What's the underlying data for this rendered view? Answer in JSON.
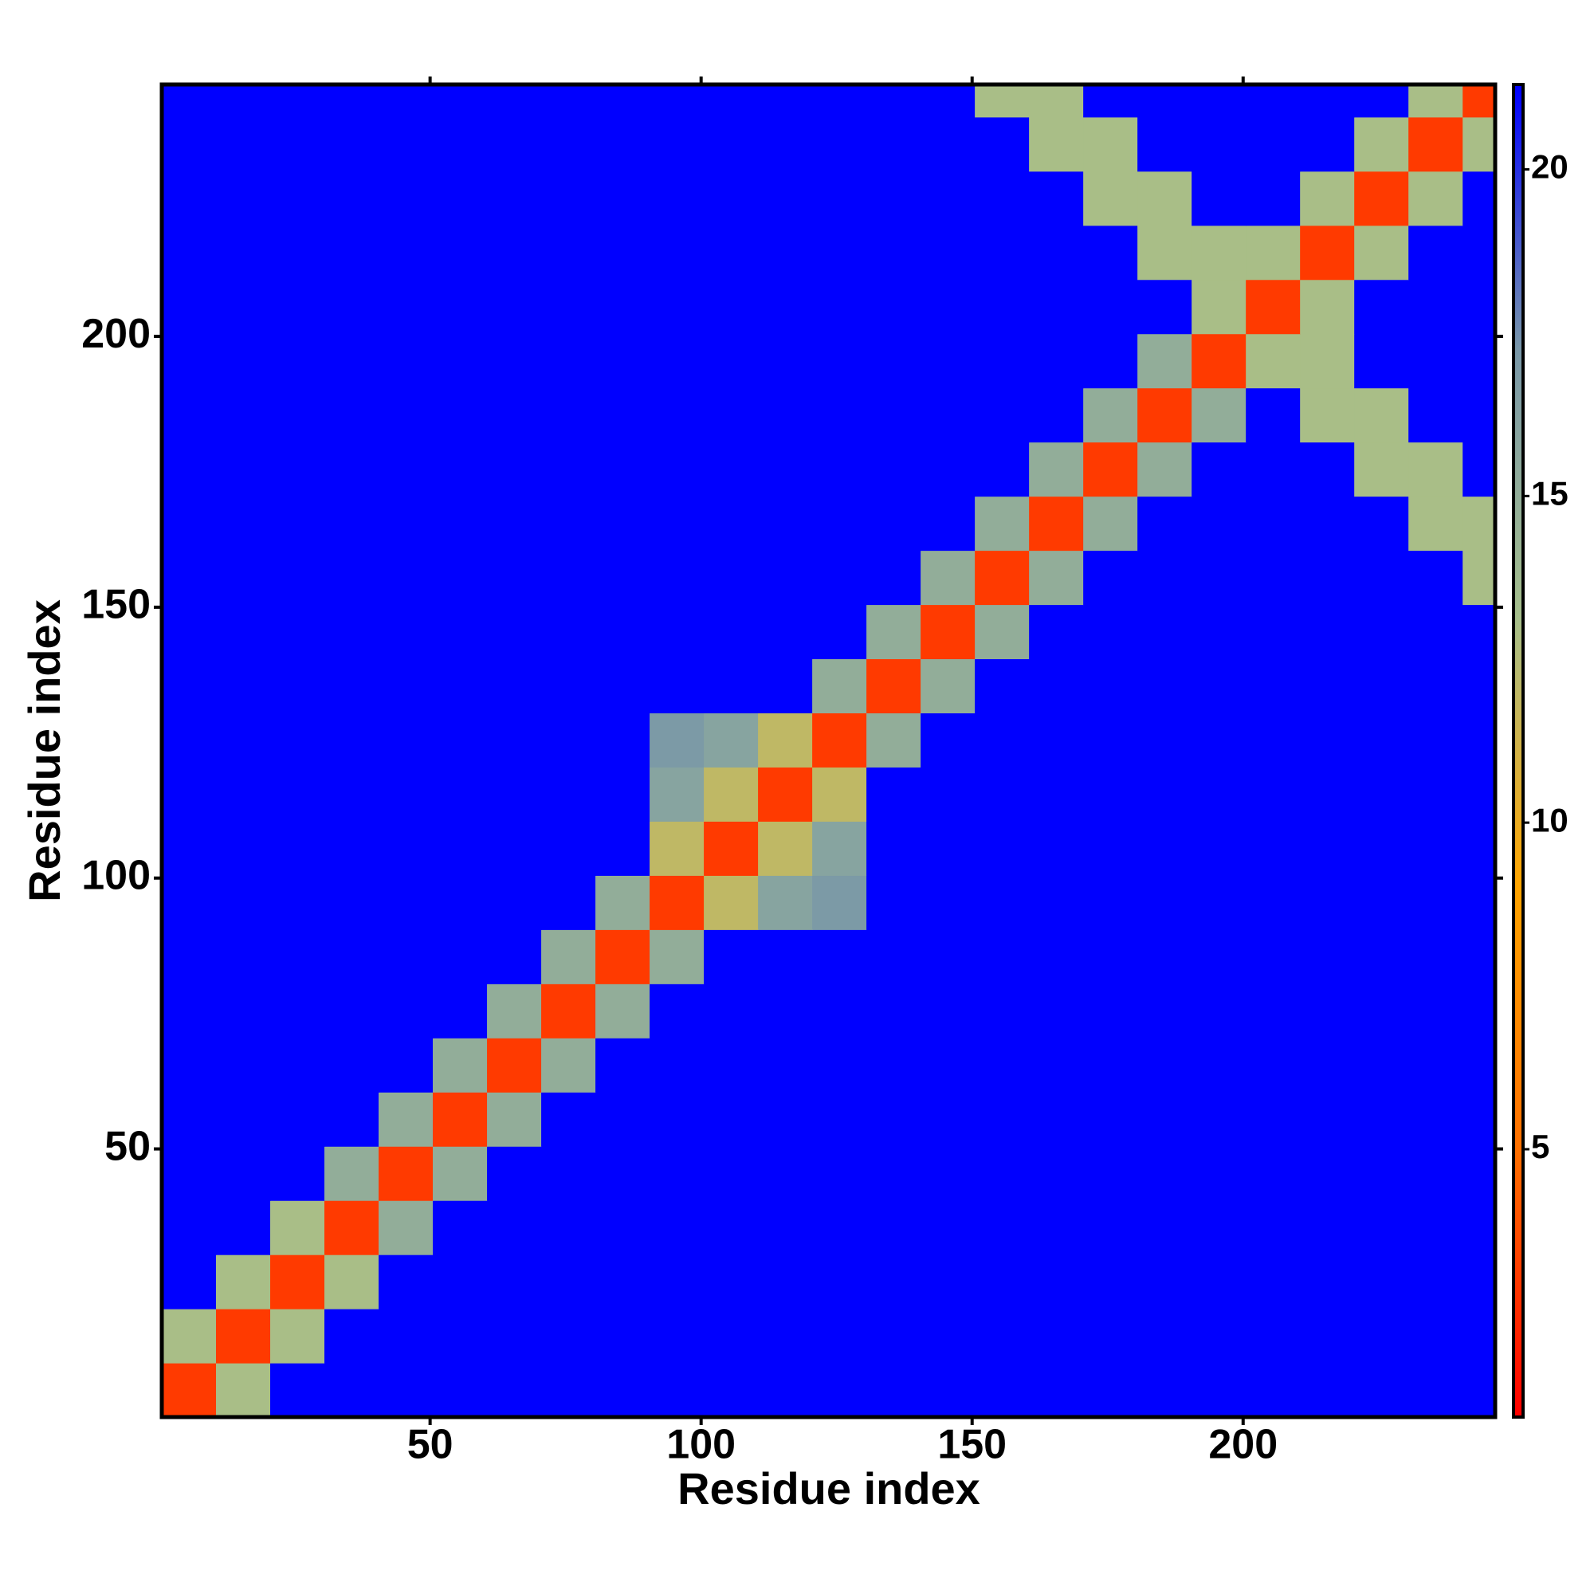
{
  "chart_data": {
    "type": "heatmap",
    "xlabel": "Residue index",
    "ylabel": "Residue index",
    "xbins": [
      0.5,
      10.5,
      20.5,
      30.5,
      40.5,
      50.5,
      60.5,
      70.5,
      80.5,
      90.5,
      100.5,
      110.5,
      120.5,
      130.5,
      140.5,
      150.5,
      160.5,
      170.5,
      180.5,
      190.5,
      200.5,
      210.5,
      220.5,
      230.5,
      240.5,
      246.5
    ],
    "ybins": [
      0.5,
      10.5,
      20.5,
      30.5,
      40.5,
      50.5,
      60.5,
      70.5,
      80.5,
      90.5,
      100.5,
      110.5,
      120.5,
      130.5,
      140.5,
      150.5,
      160.5,
      170.5,
      180.5,
      190.5,
      200.5,
      210.5,
      220.5,
      230.5,
      240.5,
      246.5
    ],
    "z": [
      [
        3,
        13,
        21.3,
        21.3,
        21.3,
        21.3,
        21.3,
        21.3,
        21.3,
        21.3,
        21.3,
        21.3,
        21.3,
        21.3,
        21.3,
        21.3,
        21.3,
        21.3,
        21.3,
        21.3,
        21.3,
        21.3,
        21.3,
        21.3,
        21.3
      ],
      [
        13,
        3,
        13,
        21.3,
        21.3,
        21.3,
        21.3,
        21.3,
        21.3,
        21.3,
        21.3,
        21.3,
        21.3,
        21.3,
        21.3,
        21.3,
        21.3,
        21.3,
        21.3,
        21.3,
        21.3,
        21.3,
        21.3,
        21.3,
        21.3
      ],
      [
        21.3,
        13,
        3,
        13,
        21.3,
        21.3,
        21.3,
        21.3,
        21.3,
        21.3,
        21.3,
        21.3,
        21.3,
        21.3,
        21.3,
        21.3,
        21.3,
        21.3,
        21.3,
        21.3,
        21.3,
        21.3,
        21.3,
        21.3,
        21.3
      ],
      [
        21.3,
        21.3,
        13,
        3,
        15,
        21.3,
        21.3,
        21.3,
        21.3,
        21.3,
        21.3,
        21.3,
        21.3,
        21.3,
        21.3,
        21.3,
        21.3,
        21.3,
        21.3,
        21.3,
        21.3,
        21.3,
        21.3,
        21.3,
        21.3
      ],
      [
        21.3,
        21.3,
        21.3,
        15,
        3,
        15,
        21.3,
        21.3,
        21.3,
        21.3,
        21.3,
        21.3,
        21.3,
        21.3,
        21.3,
        21.3,
        21.3,
        21.3,
        21.3,
        21.3,
        21.3,
        21.3,
        21.3,
        21.3,
        21.3
      ],
      [
        21.3,
        21.3,
        21.3,
        21.3,
        15,
        3,
        15,
        21.3,
        21.3,
        21.3,
        21.3,
        21.3,
        21.3,
        21.3,
        21.3,
        21.3,
        21.3,
        21.3,
        21.3,
        21.3,
        21.3,
        21.3,
        21.3,
        21.3,
        21.3
      ],
      [
        21.3,
        21.3,
        21.3,
        21.3,
        21.3,
        15,
        3,
        15,
        21.3,
        21.3,
        21.3,
        21.3,
        21.3,
        21.3,
        21.3,
        21.3,
        21.3,
        21.3,
        21.3,
        21.3,
        21.3,
        21.3,
        21.3,
        21.3,
        21.3
      ],
      [
        21.3,
        21.3,
        21.3,
        21.3,
        21.3,
        21.3,
        15,
        3,
        15,
        21.3,
        21.3,
        21.3,
        21.3,
        21.3,
        21.3,
        21.3,
        21.3,
        21.3,
        21.3,
        21.3,
        21.3,
        21.3,
        21.3,
        21.3,
        21.3
      ],
      [
        21.3,
        21.3,
        21.3,
        21.3,
        21.3,
        21.3,
        21.3,
        15,
        3,
        15,
        21.3,
        21.3,
        21.3,
        21.3,
        21.3,
        21.3,
        21.3,
        21.3,
        21.3,
        21.3,
        21.3,
        21.3,
        21.3,
        21.3,
        21.3
      ],
      [
        21.3,
        21.3,
        21.3,
        21.3,
        21.3,
        21.3,
        21.3,
        21.3,
        15,
        3,
        12,
        16,
        17,
        21.3,
        21.3,
        21.3,
        21.3,
        21.3,
        21.3,
        21.3,
        21.3,
        21.3,
        21.3,
        21.3,
        21.3
      ],
      [
        21.3,
        21.3,
        21.3,
        21.3,
        21.3,
        21.3,
        21.3,
        21.3,
        21.3,
        12,
        3,
        12,
        16,
        21.3,
        21.3,
        21.3,
        21.3,
        21.3,
        21.3,
        21.3,
        21.3,
        21.3,
        21.3,
        21.3,
        21.3
      ],
      [
        21.3,
        21.3,
        21.3,
        21.3,
        21.3,
        21.3,
        21.3,
        21.3,
        21.3,
        16,
        12,
        3,
        12,
        21.3,
        21.3,
        21.3,
        21.3,
        21.3,
        21.3,
        21.3,
        21.3,
        21.3,
        21.3,
        21.3,
        21.3
      ],
      [
        21.3,
        21.3,
        21.3,
        21.3,
        21.3,
        21.3,
        21.3,
        21.3,
        21.3,
        17,
        16,
        12,
        3,
        15,
        21.3,
        21.3,
        21.3,
        21.3,
        21.3,
        21.3,
        21.3,
        21.3,
        21.3,
        21.3,
        21.3
      ],
      [
        21.3,
        21.3,
        21.3,
        21.3,
        21.3,
        21.3,
        21.3,
        21.3,
        21.3,
        21.3,
        21.3,
        21.3,
        15,
        3,
        15,
        21.3,
        21.3,
        21.3,
        21.3,
        21.3,
        21.3,
        21.3,
        21.3,
        21.3,
        21.3
      ],
      [
        21.3,
        21.3,
        21.3,
        21.3,
        21.3,
        21.3,
        21.3,
        21.3,
        21.3,
        21.3,
        21.3,
        21.3,
        21.3,
        15,
        3,
        15,
        21.3,
        21.3,
        21.3,
        21.3,
        21.3,
        21.3,
        21.3,
        21.3,
        21.3
      ],
      [
        21.3,
        21.3,
        21.3,
        21.3,
        21.3,
        21.3,
        21.3,
        21.3,
        21.3,
        21.3,
        21.3,
        21.3,
        21.3,
        21.3,
        15,
        3,
        15,
        21.3,
        21.3,
        21.3,
        21.3,
        21.3,
        21.3,
        21.3,
        13
      ],
      [
        21.3,
        21.3,
        21.3,
        21.3,
        21.3,
        21.3,
        21.3,
        21.3,
        21.3,
        21.3,
        21.3,
        21.3,
        21.3,
        21.3,
        21.3,
        15,
        3,
        15,
        21.3,
        21.3,
        21.3,
        21.3,
        21.3,
        13,
        13
      ],
      [
        21.3,
        21.3,
        21.3,
        21.3,
        21.3,
        21.3,
        21.3,
        21.3,
        21.3,
        21.3,
        21.3,
        21.3,
        21.3,
        21.3,
        21.3,
        21.3,
        15,
        3,
        15,
        21.3,
        21.3,
        21.3,
        13,
        13,
        21.3
      ],
      [
        21.3,
        21.3,
        21.3,
        21.3,
        21.3,
        21.3,
        21.3,
        21.3,
        21.3,
        21.3,
        21.3,
        21.3,
        21.3,
        21.3,
        21.3,
        21.3,
        21.3,
        15,
        3,
        15,
        21.3,
        13,
        13,
        21.3,
        21.3
      ],
      [
        21.3,
        21.3,
        21.3,
        21.3,
        21.3,
        21.3,
        21.3,
        21.3,
        21.3,
        21.3,
        21.3,
        21.3,
        21.3,
        21.3,
        21.3,
        21.3,
        21.3,
        21.3,
        15,
        3,
        13,
        13,
        21.3,
        21.3,
        21.3
      ],
      [
        21.3,
        21.3,
        21.3,
        21.3,
        21.3,
        21.3,
        21.3,
        21.3,
        21.3,
        21.3,
        21.3,
        21.3,
        21.3,
        21.3,
        21.3,
        21.3,
        21.3,
        21.3,
        21.3,
        13,
        3,
        13,
        21.3,
        21.3,
        21.3
      ],
      [
        21.3,
        21.3,
        21.3,
        21.3,
        21.3,
        21.3,
        21.3,
        21.3,
        21.3,
        21.3,
        21.3,
        21.3,
        21.3,
        21.3,
        21.3,
        21.3,
        21.3,
        21.3,
        13,
        13,
        13,
        3,
        13,
        21.3,
        21.3
      ],
      [
        21.3,
        21.3,
        21.3,
        21.3,
        21.3,
        21.3,
        21.3,
        21.3,
        21.3,
        21.3,
        21.3,
        21.3,
        21.3,
        21.3,
        21.3,
        21.3,
        21.3,
        13,
        13,
        21.3,
        21.3,
        13,
        3,
        13,
        21.3
      ],
      [
        21.3,
        21.3,
        21.3,
        21.3,
        21.3,
        21.3,
        21.3,
        21.3,
        21.3,
        21.3,
        21.3,
        21.3,
        21.3,
        21.3,
        21.3,
        21.3,
        13,
        13,
        21.3,
        21.3,
        21.3,
        21.3,
        13,
        3,
        13
      ],
      [
        21.3,
        21.3,
        21.3,
        21.3,
        21.3,
        21.3,
        21.3,
        21.3,
        21.3,
        21.3,
        21.3,
        21.3,
        21.3,
        21.3,
        21.3,
        13,
        13,
        21.3,
        21.3,
        21.3,
        21.3,
        21.3,
        21.3,
        13,
        3
      ]
    ],
    "xlim": [
      0.5,
      246.5
    ],
    "ylim": [
      0.5,
      246.5
    ],
    "xticks": [
      50,
      100,
      150,
      200
    ],
    "yticks": [
      50,
      100,
      150,
      200
    ],
    "zlim": [
      0.9,
      21.3
    ],
    "zticks": [
      5,
      10,
      15,
      20
    ],
    "colormap": [
      "#ff0000",
      "#ff7000",
      "#ffa500",
      "#a6bf8c",
      "#7a98a8",
      "#0000ff"
    ]
  }
}
